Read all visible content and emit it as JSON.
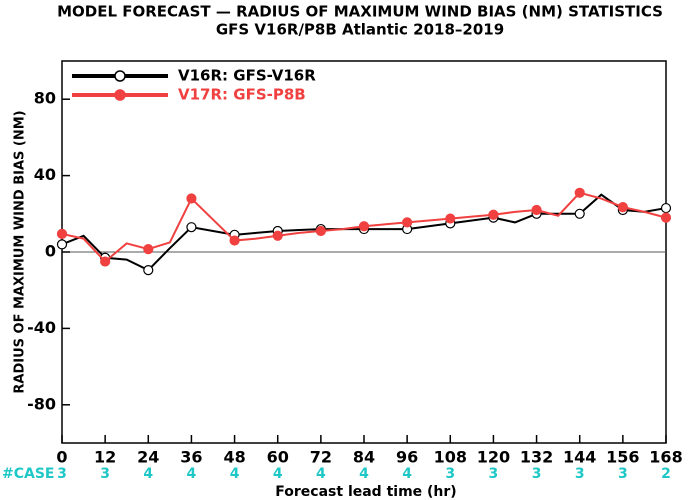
{
  "chart_data": {
    "type": "line",
    "title": "MODEL FORECAST — RADIUS OF MAXIMUM WIND BIAS (NM) STATISTICS",
    "subtitle": "GFS V16R/P8B Atlantic 2018–2019",
    "x_label": "Forecast lead time (hr)",
    "y_label": "RADIUS OF MAXIMUM WIND BIAS (NM)",
    "x": [
      0,
      6,
      12,
      18,
      24,
      30,
      36,
      42,
      48,
      54,
      60,
      66,
      72,
      78,
      84,
      90,
      96,
      102,
      108,
      114,
      120,
      126,
      132,
      138,
      144,
      150,
      156,
      162,
      168
    ],
    "series": [
      {
        "name": "V16R: GFS-V16R",
        "color": "#000000",
        "values": [
          4,
          8.5,
          -3,
          -4,
          -9.5,
          2,
          13,
          11,
          9,
          10,
          11,
          11.5,
          12,
          12,
          12,
          12,
          12,
          13.5,
          15,
          16.5,
          18,
          15.5,
          20,
          20,
          20,
          30,
          22,
          21,
          23
        ]
      },
      {
        "name": "V17R: GFS-P8B",
        "color": "#f04040",
        "values": [
          9.5,
          7,
          -5,
          4.5,
          1.5,
          5,
          28,
          17,
          6,
          7,
          8.5,
          10,
          11,
          12,
          13.5,
          14.5,
          15.5,
          16.5,
          17.5,
          18.5,
          19.5,
          21,
          22,
          19,
          31,
          28,
          23.5,
          21,
          18
        ]
      }
    ],
    "xlim": [
      0,
      168
    ],
    "xticks": [
      0,
      12,
      24,
      36,
      48,
      60,
      72,
      84,
      96,
      108,
      120,
      132,
      144,
      156,
      168
    ],
    "ylim": [
      -100,
      100
    ],
    "yticks": [
      -80,
      -40,
      0,
      40,
      80
    ],
    "case_label": "#CASE",
    "case_counts": [
      3,
      3,
      4,
      4,
      4,
      4,
      4,
      4,
      4,
      3,
      3,
      3,
      3,
      3,
      2
    ]
  }
}
